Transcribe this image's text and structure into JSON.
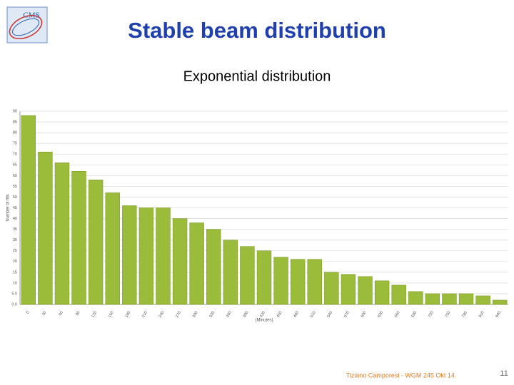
{
  "slide": {
    "title": "Stable beam distribution",
    "subtitle": "Exponential distribution",
    "footer": "Tiziano Camporesi - WGM 245 Okt 14.",
    "page_number": "11",
    "logo_text": "CMS"
  },
  "chart_data": {
    "type": "bar",
    "y_label": "Number of fills",
    "x_label": "(Minutes)",
    "categories": [
      0,
      30,
      60,
      90,
      120,
      150,
      180,
      210,
      240,
      270,
      300,
      330,
      360,
      390,
      420,
      450,
      480,
      510,
      540,
      570,
      600,
      630,
      660,
      690,
      720,
      750,
      780,
      810,
      840
    ],
    "values": [
      88,
      71,
      66,
      62,
      58,
      52,
      46,
      45,
      45,
      40,
      38,
      35,
      30,
      27,
      25,
      22,
      21,
      21,
      15,
      14,
      13,
      11,
      9,
      6,
      5,
      5,
      5,
      4,
      2
    ],
    "color": "#9bbb3b",
    "ylim": [
      0,
      90
    ],
    "yticks": [
      {
        "value": 0,
        "label": "0.0"
      },
      {
        "value": 5,
        "label": "5.0"
      },
      10,
      15,
      20,
      25,
      30,
      35,
      40,
      45,
      50,
      55,
      60,
      65,
      70,
      75,
      80,
      85,
      90
    ],
    "grid": true
  }
}
